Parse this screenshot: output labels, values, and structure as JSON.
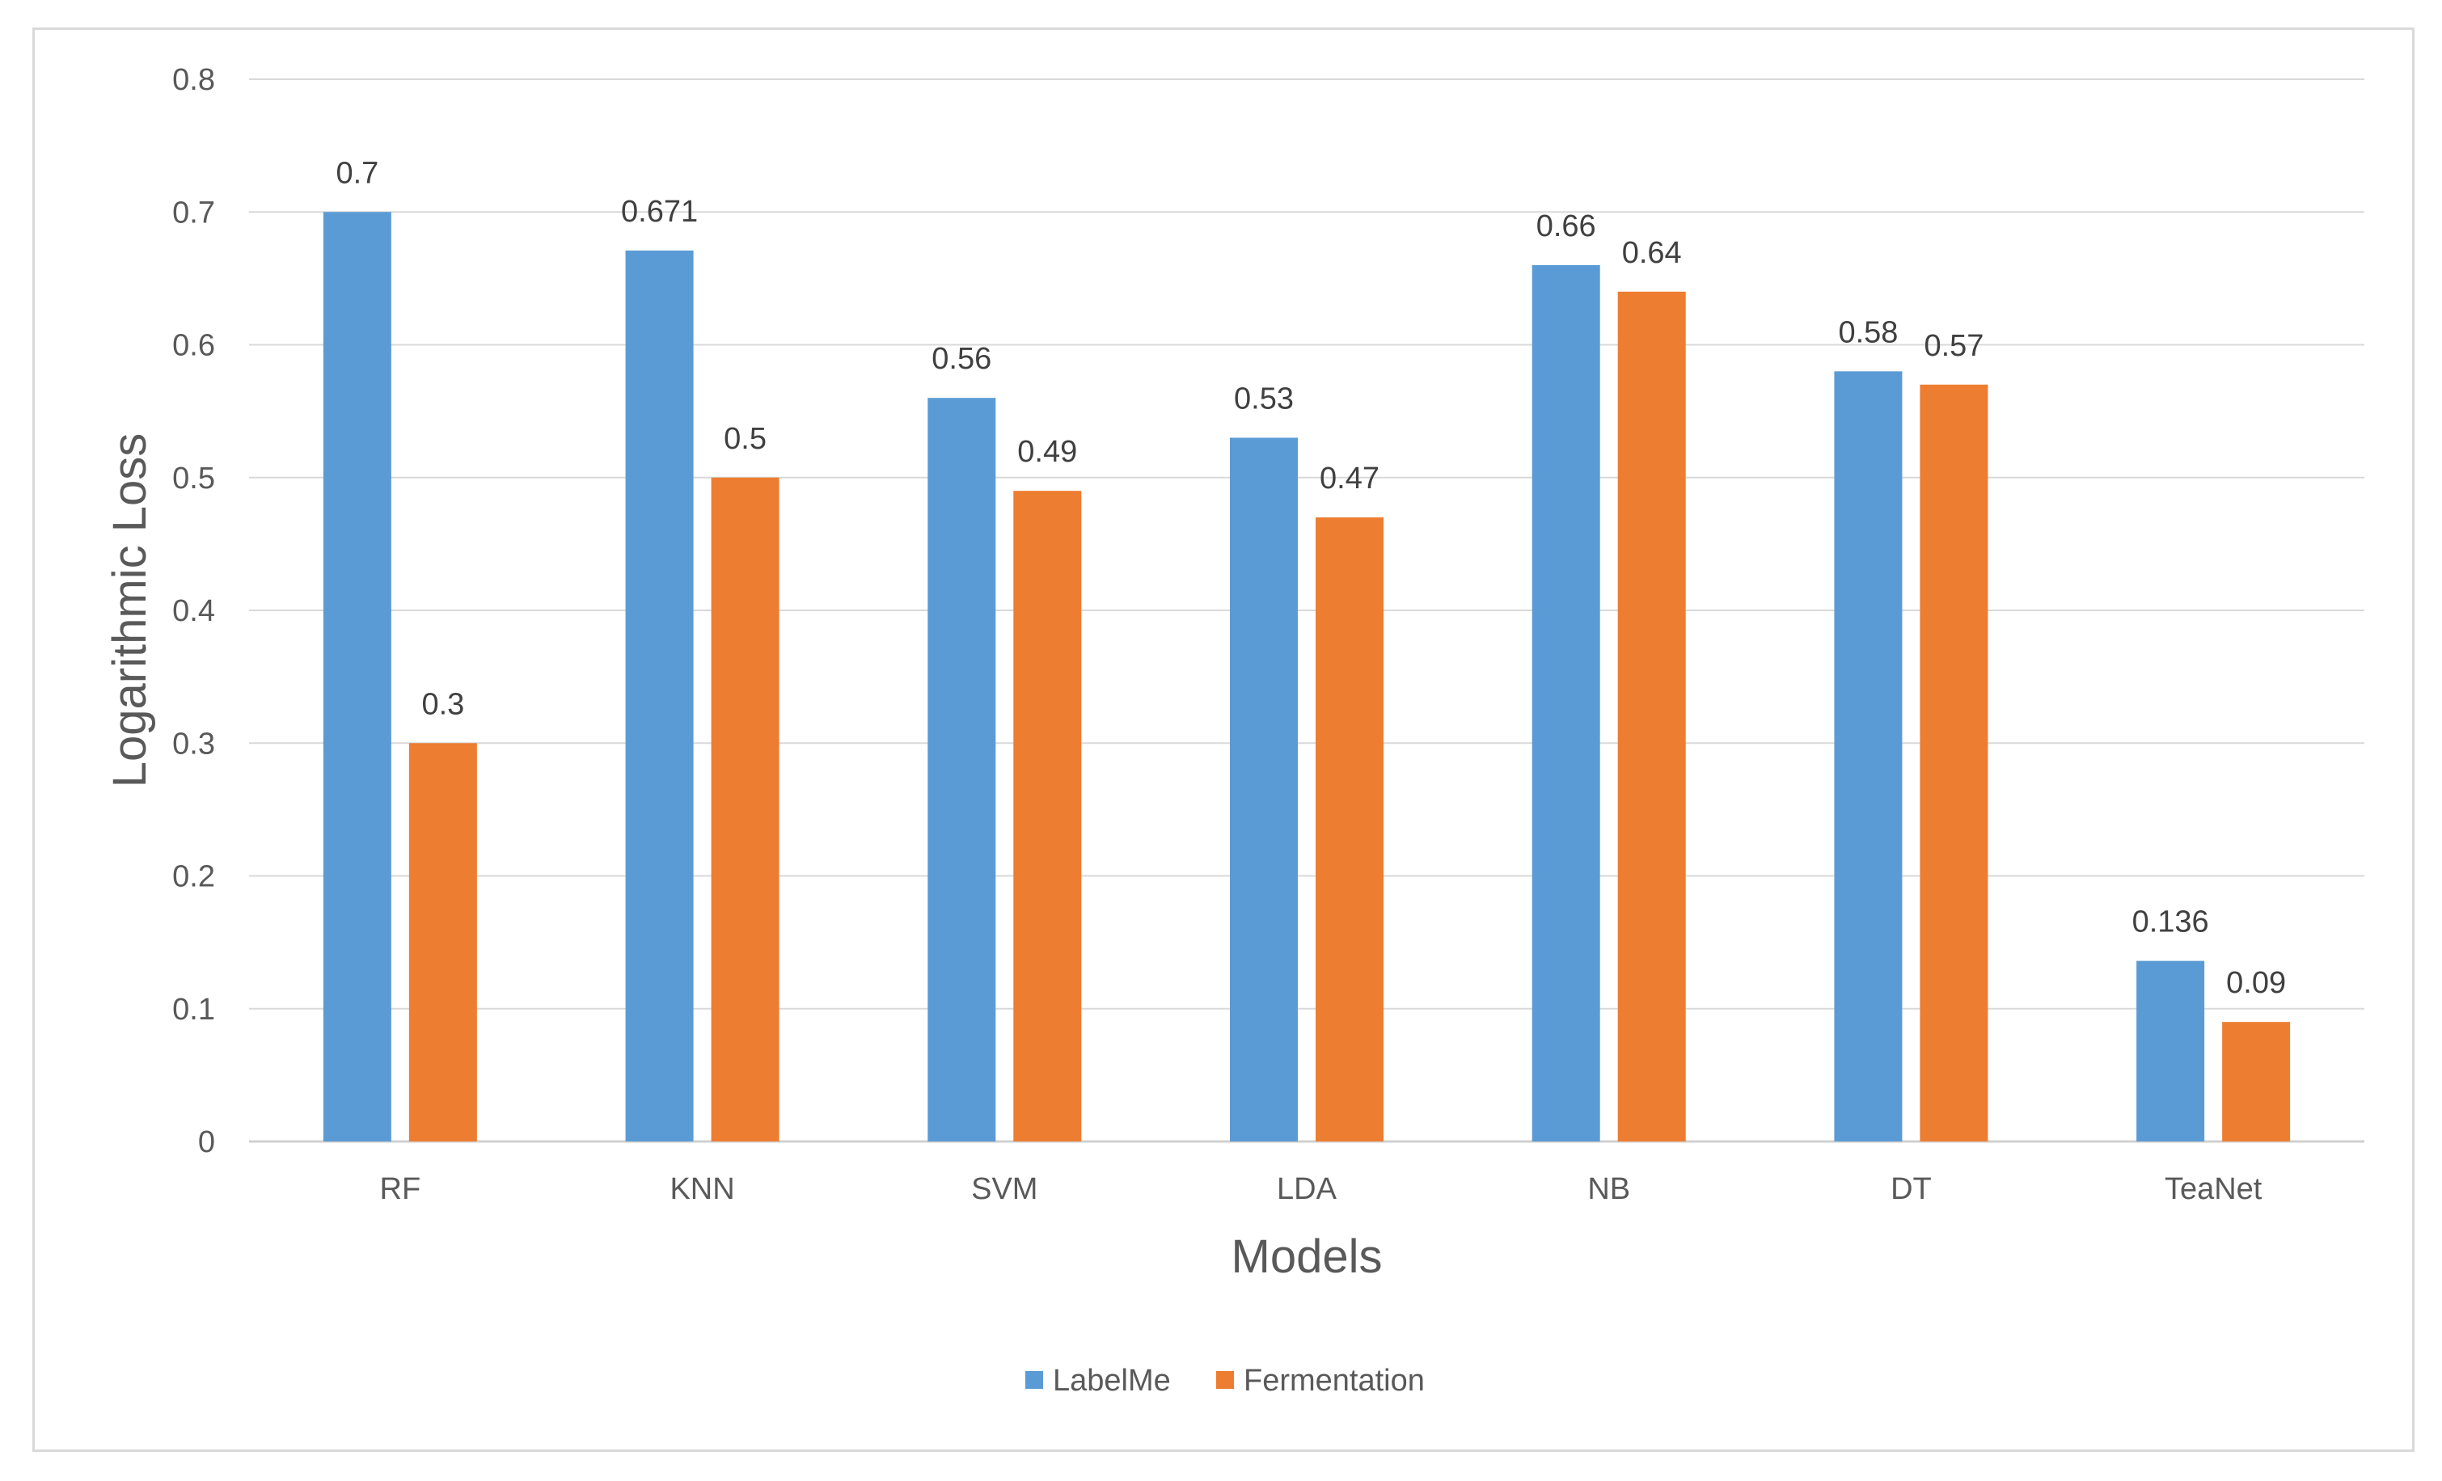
{
  "chart_data": {
    "type": "bar",
    "title": "",
    "xlabel": "Models",
    "ylabel": "Logarithmic Loss",
    "categories": [
      "RF",
      "KNN",
      "SVM",
      "LDA",
      "NB",
      "DT",
      "TeaNet"
    ],
    "series": [
      {
        "name": "LabelMe",
        "color": "#5b9bd5",
        "values": [
          0.7,
          0.671,
          0.56,
          0.53,
          0.66,
          0.58,
          0.136
        ],
        "labels": [
          "0.7",
          "0.671",
          "0.56",
          "0.53",
          "0.66",
          "0.58",
          "0.136"
        ]
      },
      {
        "name": "Fermentation",
        "color": "#ed7d31",
        "values": [
          0.3,
          0.5,
          0.49,
          0.47,
          0.64,
          0.57,
          0.09
        ],
        "labels": [
          "0.3",
          "0.5",
          "0.49",
          "0.47",
          "0.64",
          "0.57",
          "0.09"
        ]
      }
    ],
    "ylim": [
      0,
      0.8
    ],
    "yticks": [
      "0",
      "0.1",
      "0.2",
      "0.3",
      "0.4",
      "0.5",
      "0.6",
      "0.7",
      "0.8"
    ],
    "grid": true,
    "legend_position": "bottom"
  }
}
